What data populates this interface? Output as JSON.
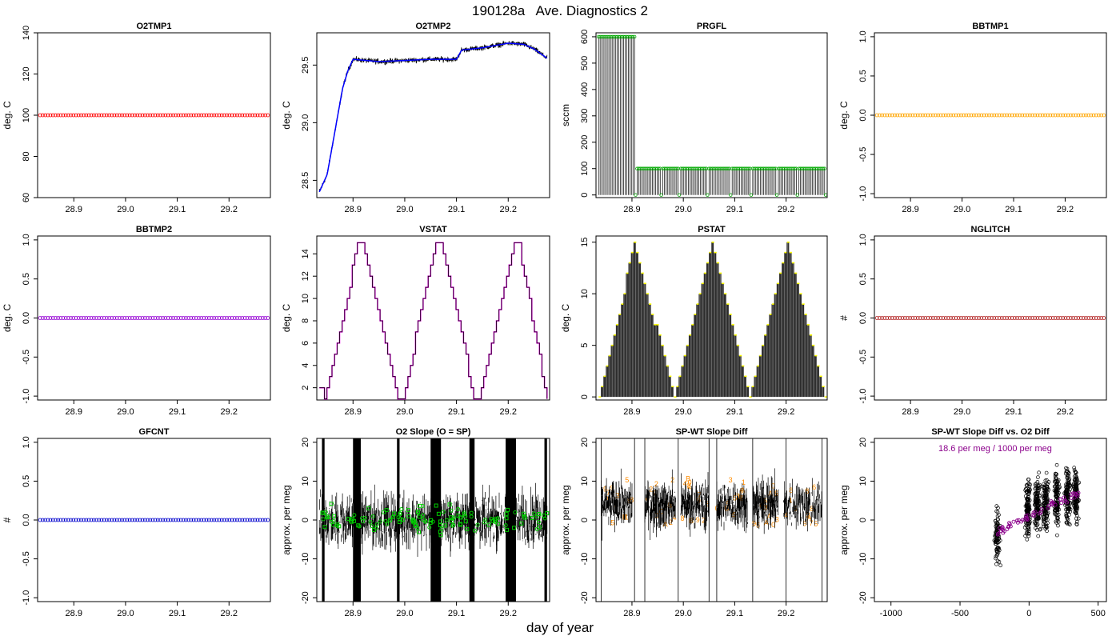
{
  "figure": {
    "title": "190128a   Ave. Diagnostics 2",
    "xlabel": "day of year"
  },
  "chart_data": [
    {
      "type": "scatter",
      "title": "O2TMP1",
      "ylabel": "deg. C",
      "xlim": [
        28.83,
        29.28
      ],
      "ylim": [
        60,
        140
      ],
      "xticks": [
        "28.9",
        "29.0",
        "29.1",
        "29.2"
      ],
      "yticks": [
        "60",
        "80",
        "100",
        "120",
        "140"
      ],
      "color": "#ff0000",
      "series": [
        {
          "x": [
            28.835,
            29.275
          ],
          "y": [
            100,
            100
          ],
          "n_points": 90
        }
      ]
    },
    {
      "type": "line",
      "title": "O2TMP2",
      "ylabel": "deg. C",
      "xlim": [
        28.83,
        29.28
      ],
      "ylim": [
        28.35,
        29.78
      ],
      "xticks": [
        "28.9",
        "29.0",
        "29.1",
        "29.2"
      ],
      "yticks": [
        "28.5",
        "29.0",
        "29.5"
      ],
      "color": "#0000ff",
      "series": [
        {
          "x": [
            28.835,
            28.85,
            28.86,
            28.87,
            28.88,
            28.89,
            28.9,
            28.95,
            29.0,
            29.05,
            29.1,
            29.11,
            29.15,
            29.2,
            29.23,
            29.25,
            29.275
          ],
          "y": [
            28.4,
            28.55,
            28.8,
            29.05,
            29.3,
            29.45,
            29.55,
            29.53,
            29.54,
            29.55,
            29.55,
            29.63,
            29.65,
            29.69,
            29.68,
            29.64,
            29.56
          ]
        }
      ]
    },
    {
      "type": "bar",
      "title": "PRGFL",
      "ylabel": "sccm",
      "xlim": [
        28.83,
        29.28
      ],
      "ylim": [
        -10,
        615
      ],
      "xticks": [
        "28.9",
        "29.0",
        "29.1",
        "29.2"
      ],
      "yticks": [
        "0",
        "100",
        "200",
        "300",
        "400",
        "500",
        "600"
      ],
      "color": "#00aa00",
      "series": [
        {
          "name": "",
          "x_ranges": [
            [
              28.835,
              28.905
            ],
            [
              28.91,
              28.955
            ],
            [
              28.96,
              28.99
            ],
            [
              28.995,
              29.045
            ],
            [
              29.05,
              29.09
            ],
            [
              29.095,
              29.13
            ],
            [
              29.135,
              29.18
            ],
            [
              29.185,
              29.22
            ],
            [
              29.225,
              29.275
            ]
          ],
          "values": [
            600,
            100,
            100,
            100,
            100,
            100,
            100,
            100,
            100
          ],
          "drops_to": 0
        }
      ]
    },
    {
      "type": "scatter",
      "title": "BBTMP1",
      "ylabel": "deg. C",
      "xlim": [
        28.83,
        29.28
      ],
      "ylim": [
        -1.05,
        1.05
      ],
      "xticks": [
        "28.9",
        "29.0",
        "29.1",
        "29.2"
      ],
      "yticks": [
        "-1.0",
        "-0.5",
        "0.0",
        "0.5",
        "1.0"
      ],
      "color": "#ffa500",
      "series": [
        {
          "x": [
            28.835,
            29.275
          ],
          "y": [
            0,
            0
          ],
          "n_points": 90
        }
      ]
    },
    {
      "type": "scatter",
      "title": "BBTMP2",
      "ylabel": "deg. C",
      "xlim": [
        28.83,
        29.28
      ],
      "ylim": [
        -1.05,
        1.05
      ],
      "xticks": [
        "28.9",
        "29.0",
        "29.1",
        "29.2"
      ],
      "yticks": [
        "-1.0",
        "-0.5",
        "0.0",
        "0.5",
        "1.0"
      ],
      "color": "#9400d3",
      "series": [
        {
          "x": [
            28.835,
            29.275
          ],
          "y": [
            0,
            0
          ],
          "n_points": 90
        }
      ]
    },
    {
      "type": "line",
      "title": "VSTAT",
      "ylabel": "deg. C",
      "xlim": [
        28.83,
        29.28
      ],
      "ylim": [
        0.9,
        15.6
      ],
      "xticks": [
        "28.9",
        "29.0",
        "29.1",
        "29.2"
      ],
      "yticks": [
        "2",
        "4",
        "6",
        "8",
        "10",
        "12",
        "14"
      ],
      "color": "#ff00ff",
      "series": [
        {
          "x": [
            28.835,
            28.845,
            28.91,
            28.92,
            28.985,
            28.995,
            29.06,
            29.07,
            29.135,
            29.145,
            29.21,
            29.22,
            29.275
          ],
          "y": [
            2,
            1,
            15,
            15,
            1,
            1,
            15,
            15,
            1,
            1,
            15,
            15,
            1
          ]
        }
      ]
    },
    {
      "type": "bar",
      "title": "PSTAT",
      "ylabel": "deg. C",
      "xlim": [
        28.83,
        29.28
      ],
      "ylim": [
        -0.3,
        15.6
      ],
      "xticks": [
        "28.9",
        "29.0",
        "29.1",
        "29.2"
      ],
      "yticks": [
        "0",
        "5",
        "10",
        "15"
      ],
      "color": "#ffff00",
      "series": [
        {
          "name": "",
          "x": [
            28.835,
            28.905,
            28.98,
            29.055,
            29.13,
            29.2,
            29.275
          ],
          "values": [
            0,
            15,
            0,
            15,
            0,
            15,
            0
          ]
        }
      ]
    },
    {
      "type": "scatter",
      "title": "NGLITCH",
      "ylabel": "#",
      "xlim": [
        28.83,
        29.28
      ],
      "ylim": [
        -1.05,
        1.05
      ],
      "xticks": [
        "28.9",
        "29.0",
        "29.1",
        "29.2"
      ],
      "yticks": [
        "-1.0",
        "-0.5",
        "0.0",
        "0.5",
        "1.0"
      ],
      "color": "#b22222",
      "series": [
        {
          "x": [
            28.835,
            29.275
          ],
          "y": [
            0,
            0
          ],
          "n_points": 90
        }
      ]
    },
    {
      "type": "scatter",
      "title": "GFCNT",
      "ylabel": "#",
      "xlim": [
        28.83,
        29.28
      ],
      "ylim": [
        -1.05,
        1.05
      ],
      "xticks": [
        "28.9",
        "29.0",
        "29.1",
        "29.2"
      ],
      "yticks": [
        "-1.0",
        "-0.5",
        "0.0",
        "0.5",
        "1.0"
      ],
      "color": "#0000cd",
      "series": [
        {
          "x": [
            28.835,
            29.275
          ],
          "y": [
            0,
            0
          ],
          "n_points": 90
        }
      ]
    },
    {
      "type": "line",
      "title": "O2 Slope (O = SP)",
      "ylabel": "approx. per meg",
      "xlim": [
        28.83,
        29.28
      ],
      "ylim": [
        -21,
        21
      ],
      "xticks": [
        "28.9",
        "29.0",
        "29.1",
        "29.2"
      ],
      "yticks": [
        "-20",
        "-10",
        "0",
        "10",
        "20"
      ],
      "color": "#00cc00",
      "series": [
        {
          "name": "",
          "x_range": [
            28.835,
            29.275
          ],
          "y_range": [
            -12,
            12
          ],
          "full_height_bands": [
            [
              28.84,
              28.845
            ],
            [
              28.9,
              28.915
            ],
            [
              28.985,
              28.99
            ],
            [
              29.05,
              29.07
            ],
            [
              29.125,
              29.135
            ],
            [
              29.195,
              29.215
            ],
            [
              29.27,
              29.275
            ]
          ],
          "marker_y_range": [
            -5,
            5
          ]
        }
      ]
    },
    {
      "type": "line",
      "title": "SP-WT Slope Diff",
      "ylabel": "approx. per meg",
      "xlim": [
        28.83,
        29.28
      ],
      "ylim": [
        -21,
        21
      ],
      "xticks": [
        "28.9",
        "29.0",
        "29.1",
        "29.2"
      ],
      "yticks": [
        "-20",
        "-10",
        "0",
        "10",
        "20"
      ],
      "color": "#ff8c00",
      "series": [
        {
          "name": "",
          "segments": [
            [
              28.84,
              28.9
            ],
            [
              28.925,
              28.985
            ],
            [
              28.995,
              29.05
            ],
            [
              29.065,
              29.125
            ],
            [
              29.135,
              29.185
            ],
            [
              29.195,
              29.27
            ]
          ],
          "y_range": [
            -10,
            18
          ],
          "digit_labels": [
            "0",
            "1",
            "2",
            "3",
            "4",
            "5",
            "6",
            "7",
            "8",
            "9",
            "A",
            "B",
            "C"
          ],
          "vertical_lines": [
            28.84,
            28.905,
            28.925,
            28.99,
            29.05,
            29.065,
            29.135,
            29.2,
            29.27
          ]
        }
      ]
    },
    {
      "type": "scatter",
      "title": "SP-WT Slope Diff vs. O2 Diff",
      "ylabel": "approx. per meg",
      "annotation": "18.6 per meg / 1000 per meg",
      "xlim": [
        -1120,
        560
      ],
      "ylim": [
        -21,
        21
      ],
      "xticks": [
        "-1000",
        "-500",
        "0",
        "500"
      ],
      "yticks": [
        "-20",
        "-10",
        "0",
        "10",
        "20"
      ],
      "color": "#8b008b",
      "series": [
        {
          "name": "",
          "clusters_x": [
            -230,
            -10,
            60,
            120,
            200,
            280,
            340
          ],
          "y_range": [
            -15,
            20
          ],
          "fit": {
            "x": [
              -230,
              360
            ],
            "y": [
              -3,
              7
            ]
          }
        }
      ]
    }
  ]
}
